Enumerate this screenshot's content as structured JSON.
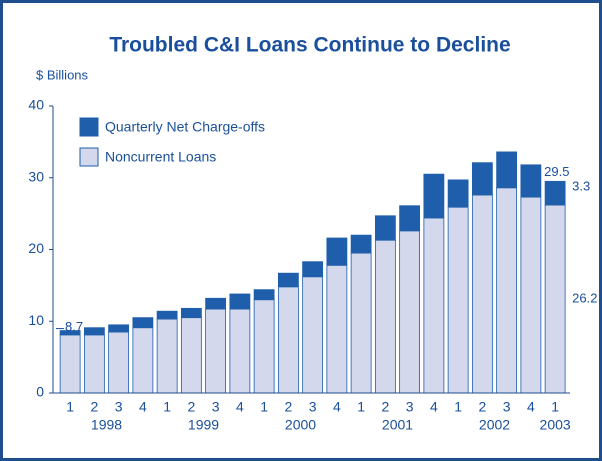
{
  "chart_data": {
    "type": "stacked_bar",
    "title": "Troubled C&I Loans Continue to Decline",
    "y_label": "$ Billions",
    "categories": [
      "1",
      "2",
      "3",
      "4",
      "1",
      "2",
      "3",
      "4",
      "1",
      "2",
      "3",
      "4",
      "1",
      "2",
      "3",
      "4",
      "1",
      "2",
      "3",
      "4",
      "1"
    ],
    "groups": [
      "1998",
      "1999",
      "2000",
      "2001",
      "2002",
      "2003"
    ],
    "series": [
      {
        "name": "Noncurrent Loans",
        "color": "#d3d8ec",
        "values": [
          8.1,
          8.1,
          8.5,
          9.1,
          10.3,
          10.5,
          11.7,
          11.7,
          13.0,
          14.8,
          16.2,
          17.8,
          19.5,
          21.3,
          22.6,
          24.4,
          25.9,
          27.6,
          28.6,
          27.3,
          26.2
        ],
        "value_labels": [
          null,
          null,
          null,
          null,
          null,
          null,
          null,
          null,
          null,
          null,
          null,
          null,
          null,
          null,
          null,
          null,
          null,
          null,
          null,
          null,
          "26.2"
        ]
      },
      {
        "name": "Quarterly Net Charge-offs",
        "color": "#1e5eab",
        "values": [
          0.6,
          1.0,
          1.0,
          1.4,
          1.1,
          1.3,
          1.5,
          2.1,
          1.4,
          1.9,
          2.1,
          3.8,
          2.5,
          3.4,
          3.5,
          6.1,
          3.8,
          4.5,
          5.0,
          4.5,
          3.3
        ],
        "value_labels": [
          null,
          null,
          null,
          null,
          null,
          null,
          null,
          null,
          null,
          null,
          null,
          null,
          null,
          null,
          null,
          null,
          null,
          null,
          null,
          null,
          "3.3"
        ]
      }
    ],
    "annotations": [
      {
        "value": 8.7,
        "label": "8.7"
      },
      {
        "value": 29.5,
        "label": "29.5"
      }
    ],
    "ylim": [
      0,
      40
    ],
    "yticks": [
      0,
      10,
      20,
      30,
      40
    ]
  }
}
